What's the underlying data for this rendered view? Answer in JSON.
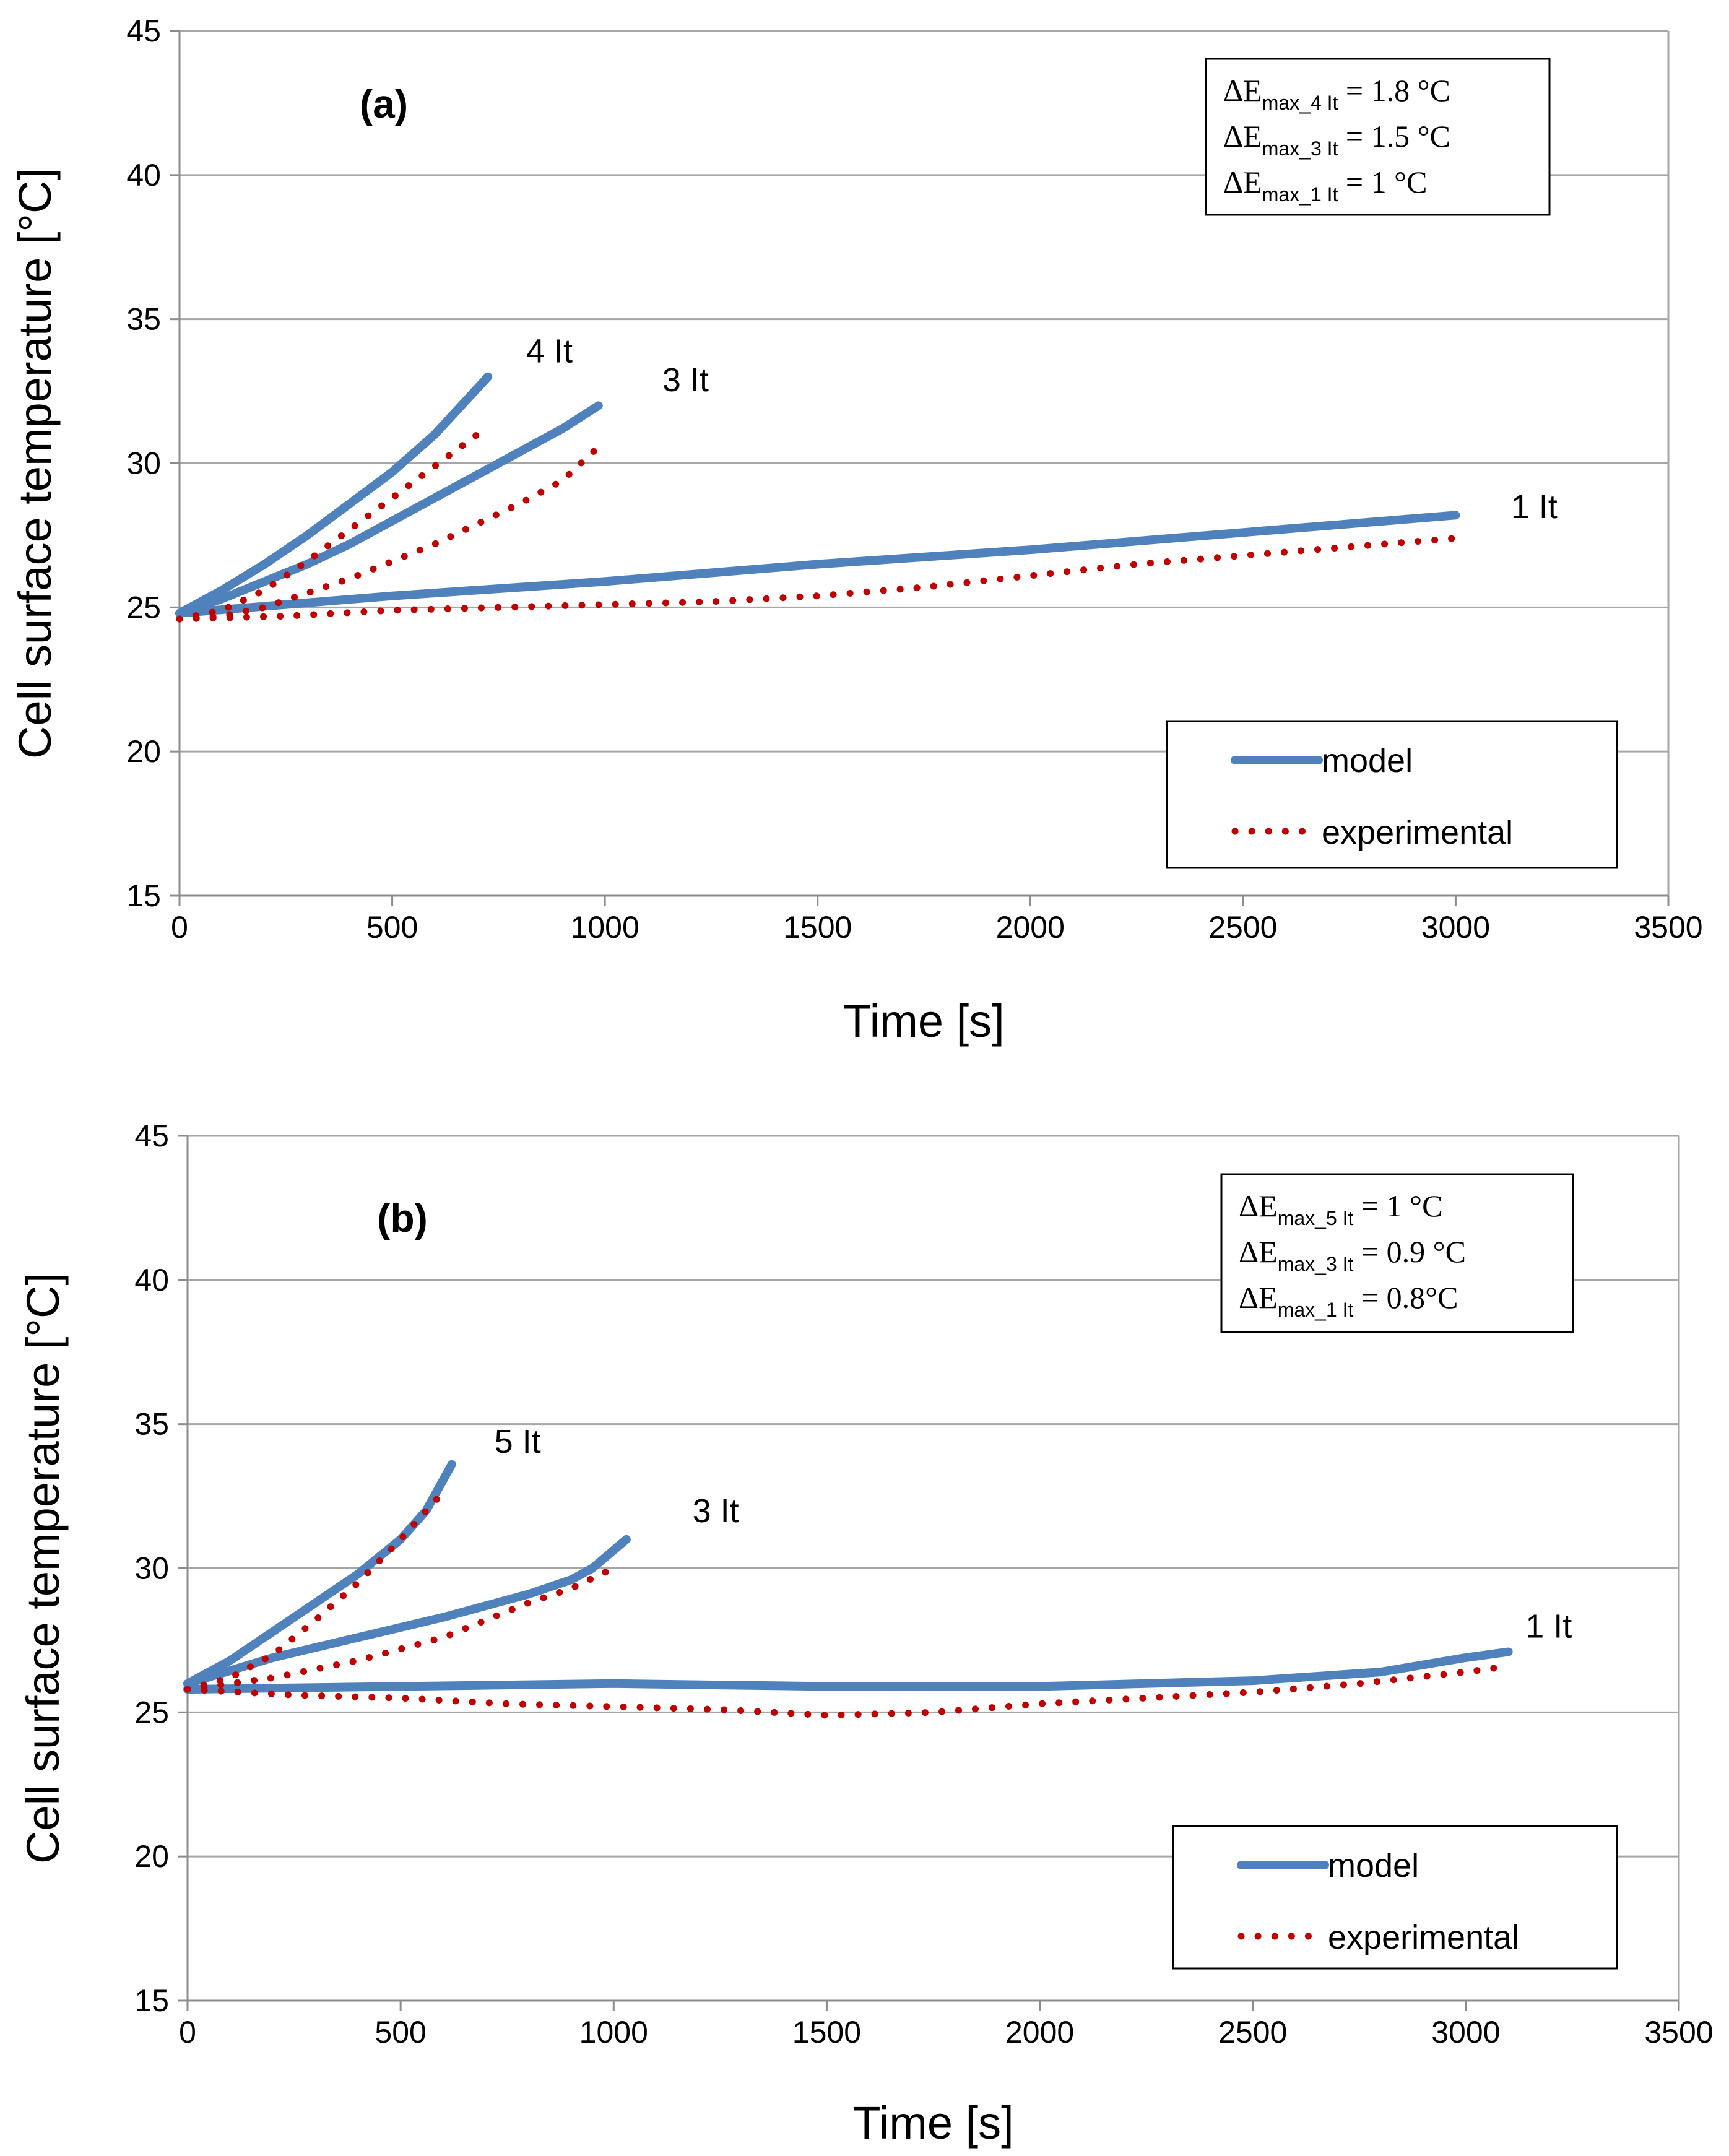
{
  "chart_data": [
    {
      "type": "line",
      "panel_label": "(a)",
      "xlabel": "Time [s]",
      "ylabel": "Cell surface temperature [°C]",
      "xlim": [
        0,
        3500
      ],
      "ylim": [
        15,
        45
      ],
      "xticks": [
        0,
        500,
        1000,
        1500,
        2000,
        2500,
        3000,
        3500
      ],
      "yticks": [
        15,
        20,
        25,
        30,
        35,
        40,
        45
      ],
      "grid": true,
      "legend": {
        "position": "bottom-right",
        "model_label": "model",
        "experimental_label": "experimental"
      },
      "annotations": [
        {
          "symbol": "ΔE",
          "sub": "max_4 It",
          "rhs": " = 1.8 °C"
        },
        {
          "symbol": "ΔE",
          "sub": "max_3 It",
          "rhs": " = 1.5 °C"
        },
        {
          "symbol": "ΔE",
          "sub": "max_1 It",
          "rhs": " = 1 °C"
        }
      ],
      "curve_labels": [
        {
          "text": "4 It",
          "x": 815,
          "y": 33.5
        },
        {
          "text": "3 It",
          "x": 1135,
          "y": 32.5
        },
        {
          "text": "1 It",
          "x": 3130,
          "y": 28.1
        }
      ],
      "series": [
        {
          "name": "model 4 It",
          "kind": "model",
          "x": [
            0,
            100,
            200,
            300,
            400,
            500,
            600,
            725
          ],
          "y": [
            24.8,
            25.6,
            26.5,
            27.5,
            28.6,
            29.7,
            31.0,
            33.0
          ]
        },
        {
          "name": "model 3 It",
          "kind": "model",
          "x": [
            0,
            100,
            200,
            300,
            400,
            500,
            600,
            700,
            800,
            900,
            985
          ],
          "y": [
            24.8,
            25.3,
            25.9,
            26.5,
            27.2,
            28.0,
            28.8,
            29.6,
            30.4,
            31.2,
            32.0
          ]
        },
        {
          "name": "model 1 It",
          "kind": "model",
          "x": [
            0,
            500,
            1000,
            1500,
            2000,
            2500,
            3000
          ],
          "y": [
            24.8,
            25.4,
            25.9,
            26.5,
            27.0,
            27.6,
            28.2
          ]
        },
        {
          "name": "experimental 4 It",
          "kind": "experimental",
          "x": [
            0,
            100,
            200,
            300,
            400,
            500,
            600,
            700
          ],
          "y": [
            24.6,
            24.9,
            25.6,
            26.6,
            27.7,
            28.8,
            29.9,
            31.0
          ]
        },
        {
          "name": "experimental 3 It",
          "kind": "experimental",
          "x": [
            0,
            100,
            200,
            300,
            400,
            500,
            600,
            700,
            800,
            900,
            980
          ],
          "y": [
            24.6,
            24.7,
            25.0,
            25.5,
            26.0,
            26.6,
            27.2,
            27.9,
            28.6,
            29.4,
            30.5
          ]
        },
        {
          "name": "experimental 1 It",
          "kind": "experimental",
          "x": [
            0,
            250,
            500,
            750,
            1000,
            1250,
            1500,
            1750,
            2000,
            2250,
            2500,
            2750,
            3000
          ],
          "y": [
            24.6,
            24.7,
            24.9,
            25.0,
            25.1,
            25.2,
            25.4,
            25.7,
            26.1,
            26.5,
            26.8,
            27.1,
            27.4
          ]
        }
      ]
    },
    {
      "type": "line",
      "panel_label": "(b)",
      "xlabel": "Time [s]",
      "ylabel": "Cell surface temperature [°C]",
      "xlim": [
        0,
        3500
      ],
      "ylim": [
        15,
        45
      ],
      "xticks": [
        0,
        500,
        1000,
        1500,
        2000,
        2500,
        3000,
        3500
      ],
      "yticks": [
        15,
        20,
        25,
        30,
        35,
        40,
        45
      ],
      "grid": true,
      "legend": {
        "position": "bottom-right",
        "model_label": "model",
        "experimental_label": "experimental"
      },
      "annotations": [
        {
          "symbol": "ΔE",
          "sub": "max_5 It",
          "rhs": " = 1 °C"
        },
        {
          "symbol": "ΔE",
          "sub": "max_3 It",
          "rhs": " = 0.9 °C"
        },
        {
          "symbol": "ΔE",
          "sub": "max_1 It",
          "rhs": " = 0.8°C"
        }
      ],
      "curve_labels": [
        {
          "text": "5 It",
          "x": 720,
          "y": 34.0
        },
        {
          "text": "3 It",
          "x": 1185,
          "y": 31.6
        },
        {
          "text": "1 It",
          "x": 3140,
          "y": 27.6
        }
      ],
      "series": [
        {
          "name": "model 5 It",
          "kind": "model",
          "x": [
            0,
            100,
            200,
            300,
            400,
            500,
            560,
            620
          ],
          "y": [
            26.0,
            26.8,
            27.8,
            28.8,
            29.8,
            31.0,
            32.0,
            33.6
          ]
        },
        {
          "name": "model 3 It",
          "kind": "model",
          "x": [
            0,
            200,
            400,
            600,
            800,
            900,
            950,
            1030
          ],
          "y": [
            26.0,
            26.9,
            27.6,
            28.3,
            29.1,
            29.6,
            30.0,
            31.0
          ]
        },
        {
          "name": "model 1 It",
          "kind": "model",
          "x": [
            0,
            500,
            1000,
            1500,
            2000,
            2500,
            2800,
            3000,
            3100
          ],
          "y": [
            25.8,
            25.9,
            26.0,
            25.9,
            25.9,
            26.1,
            26.4,
            26.9,
            27.1
          ]
        },
        {
          "name": "experimental 5 It",
          "kind": "experimental",
          "x": [
            0,
            100,
            200,
            300,
            400,
            500,
            560,
            610
          ],
          "y": [
            25.8,
            26.2,
            27.0,
            28.2,
            29.5,
            31.0,
            32.0,
            32.8
          ]
        },
        {
          "name": "experimental 3 It",
          "kind": "experimental",
          "x": [
            0,
            200,
            400,
            600,
            800,
            900,
            1000
          ],
          "y": [
            25.8,
            26.2,
            26.8,
            27.6,
            28.8,
            29.3,
            30.0
          ]
        },
        {
          "name": "experimental 1 It",
          "kind": "experimental",
          "x": [
            0,
            250,
            500,
            750,
            1000,
            1250,
            1500,
            1750,
            2000,
            2250,
            2500,
            2750,
            3000,
            3100
          ],
          "y": [
            25.8,
            25.6,
            25.5,
            25.3,
            25.2,
            25.1,
            24.9,
            25.0,
            25.3,
            25.5,
            25.7,
            26.0,
            26.4,
            26.6
          ]
        }
      ]
    }
  ],
  "colors": {
    "model": "#4f81bd",
    "experimental": "#c00000",
    "grid": "#a6a6a6"
  }
}
